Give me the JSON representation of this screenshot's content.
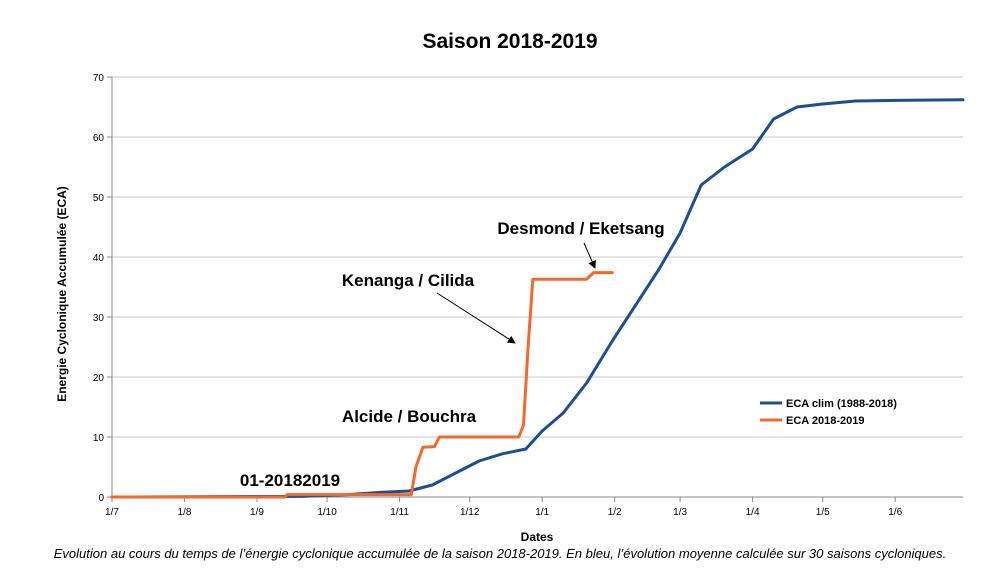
{
  "caption": "Evolution au cours du temps de l’énergie cyclonique accumulée de la saison 2018-2019. En bleu, l’évolution moyenne calculée sur 30 saisons cycloniques.",
  "chart_data": {
    "type": "line",
    "title": "Saison 2018-2019",
    "xlabel": "Dates",
    "ylabel": "Energie Cyclonique Accumulée (ECA)",
    "ylim": [
      0,
      70
    ],
    "yticks": [
      0,
      10,
      20,
      30,
      40,
      50,
      60,
      70
    ],
    "x_tick_labels": [
      "1/7",
      "1/8",
      "1/9",
      "1/10",
      "1/11",
      "1/12",
      "1/1",
      "1/2",
      "1/3",
      "1/4",
      "1/5",
      "1/6"
    ],
    "x_tick_dates": [
      "2018-07-01",
      "2018-08-01",
      "2018-09-01",
      "2018-10-01",
      "2018-11-01",
      "2018-12-01",
      "2019-01-01",
      "2019-02-01",
      "2019-03-01",
      "2019-04-01",
      "2019-05-01",
      "2019-06-01"
    ],
    "xlim": [
      "2018-07-01",
      "2019-06-30"
    ],
    "grid": "horizontal",
    "legend_position": "right",
    "series": [
      {
        "name": "ECA clim (1988-2018)",
        "color": "#1f4e8c",
        "points": [
          [
            "2018-07-01",
            0
          ],
          [
            "2018-09-20",
            0.1
          ],
          [
            "2018-10-10",
            0.4
          ],
          [
            "2018-10-25",
            0.8
          ],
          [
            "2018-11-05",
            1.0
          ],
          [
            "2018-11-15",
            2.0
          ],
          [
            "2018-11-25",
            4.0
          ],
          [
            "2018-12-05",
            6.0
          ],
          [
            "2018-12-15",
            7.2
          ],
          [
            "2018-12-25",
            8.0
          ],
          [
            "2019-01-01",
            11.0
          ],
          [
            "2019-01-10",
            14.0
          ],
          [
            "2019-01-20",
            19.0
          ],
          [
            "2019-01-31",
            26.0
          ],
          [
            "2019-02-10",
            32.0
          ],
          [
            "2019-02-20",
            38.0
          ],
          [
            "2019-03-01",
            44.0
          ],
          [
            "2019-03-10",
            52.0
          ],
          [
            "2019-03-20",
            55.0
          ],
          [
            "2019-04-01",
            58.0
          ],
          [
            "2019-04-10",
            63.0
          ],
          [
            "2019-04-20",
            65.0
          ],
          [
            "2019-05-01",
            65.5
          ],
          [
            "2019-05-15",
            66.0
          ],
          [
            "2019-06-01",
            66.1
          ],
          [
            "2019-06-30",
            66.2
          ]
        ]
      },
      {
        "name": "ECA 2018-2019",
        "color": "#ee6a2e",
        "points": [
          [
            "2018-07-01",
            0
          ],
          [
            "2018-09-13",
            0
          ],
          [
            "2018-09-14",
            0.4
          ],
          [
            "2018-11-06",
            0.4
          ],
          [
            "2018-11-08",
            5.0
          ],
          [
            "2018-11-11",
            8.3
          ],
          [
            "2018-11-16",
            8.4
          ],
          [
            "2018-11-18",
            10.0
          ],
          [
            "2018-12-22",
            10.0
          ],
          [
            "2018-12-24",
            12.0
          ],
          [
            "2018-12-26",
            25.0
          ],
          [
            "2018-12-28",
            36.3
          ],
          [
            "2019-01-20",
            36.3
          ],
          [
            "2019-01-23",
            37.4
          ],
          [
            "2019-01-31",
            37.4
          ]
        ]
      }
    ],
    "annotations": [
      {
        "text": "01-20182019",
        "x": "2018-09-14",
        "y": 0.4
      },
      {
        "text": "Alcide / Bouchra",
        "x": "2018-11-08",
        "y": 8.3
      },
      {
        "text": "Kenanga / Cilida",
        "x": "2018-12-26",
        "y": 26
      },
      {
        "text": "Desmond / Eketsang",
        "x": "2019-01-22",
        "y": 37.4
      }
    ]
  }
}
